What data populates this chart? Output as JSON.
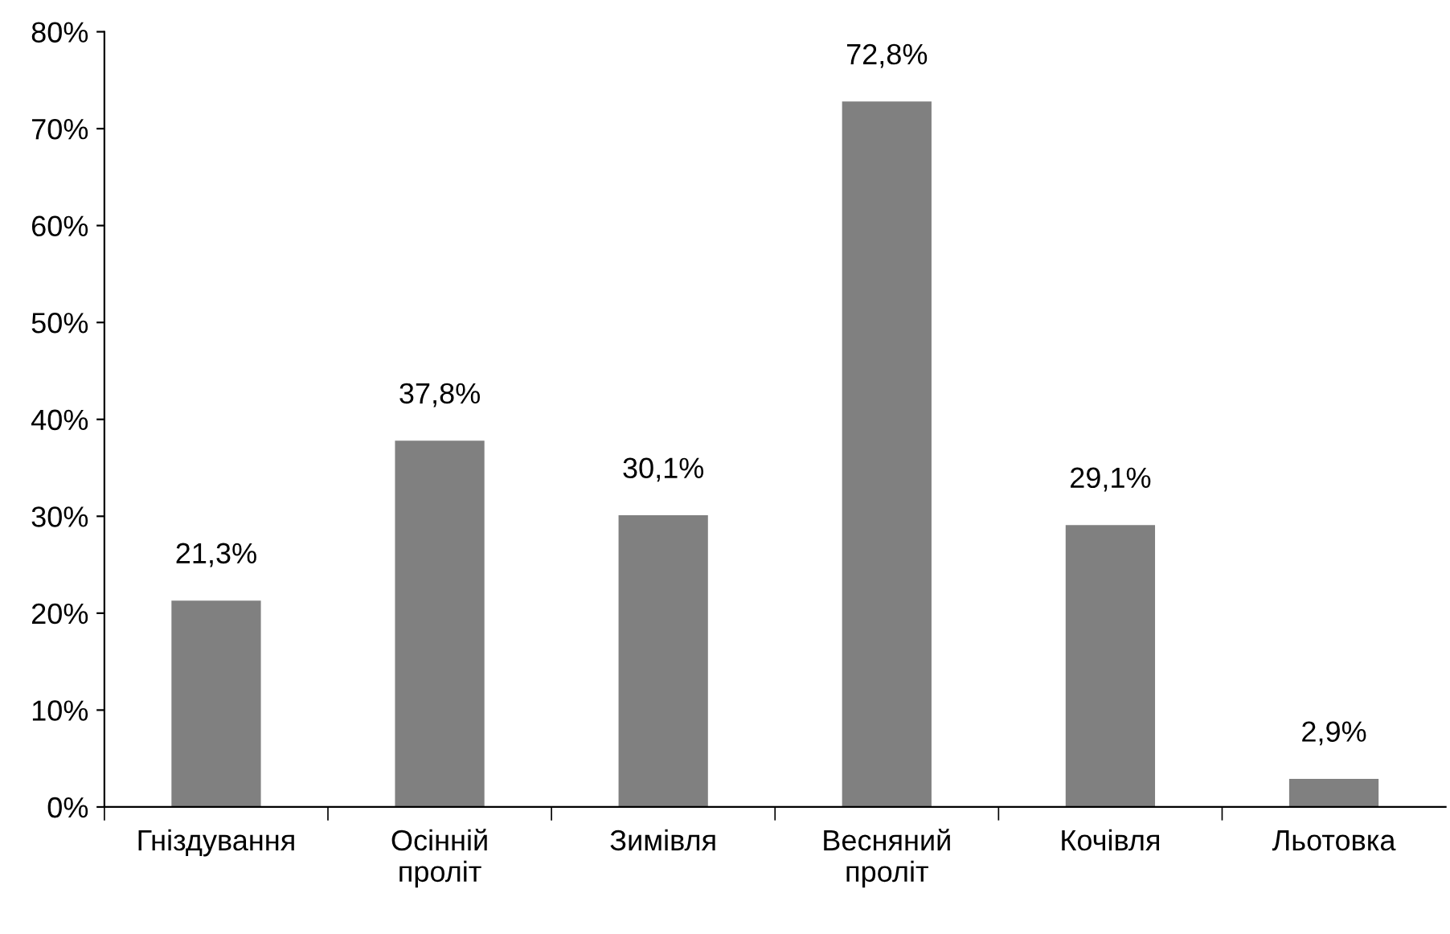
{
  "chart_data": {
    "type": "bar",
    "categories": [
      "Гніздування",
      "Осінній\nпроліт",
      "Зимівля",
      "Весняний\nпроліт",
      "Кочівля",
      "Льотовка"
    ],
    "values": [
      21.3,
      37.8,
      30.1,
      72.8,
      29.1,
      2.9
    ],
    "value_labels": [
      "21,3%",
      "37,8%",
      "30,1%",
      "72,8%",
      "29,1%",
      "2,9%"
    ],
    "color": "#808080",
    "ylim": [
      0,
      80
    ],
    "yticks": [
      {
        "value": 0,
        "label": "0%"
      },
      {
        "value": 10,
        "label": "10%"
      },
      {
        "value": 20,
        "label": "20%"
      },
      {
        "value": 30,
        "label": "30%"
      },
      {
        "value": 40,
        "label": "40%"
      },
      {
        "value": 50,
        "label": "50%"
      },
      {
        "value": 60,
        "label": "60%"
      },
      {
        "value": 70,
        "label": "70%"
      },
      {
        "value": 80,
        "label": "80%"
      }
    ],
    "grid": false,
    "legend": false
  }
}
